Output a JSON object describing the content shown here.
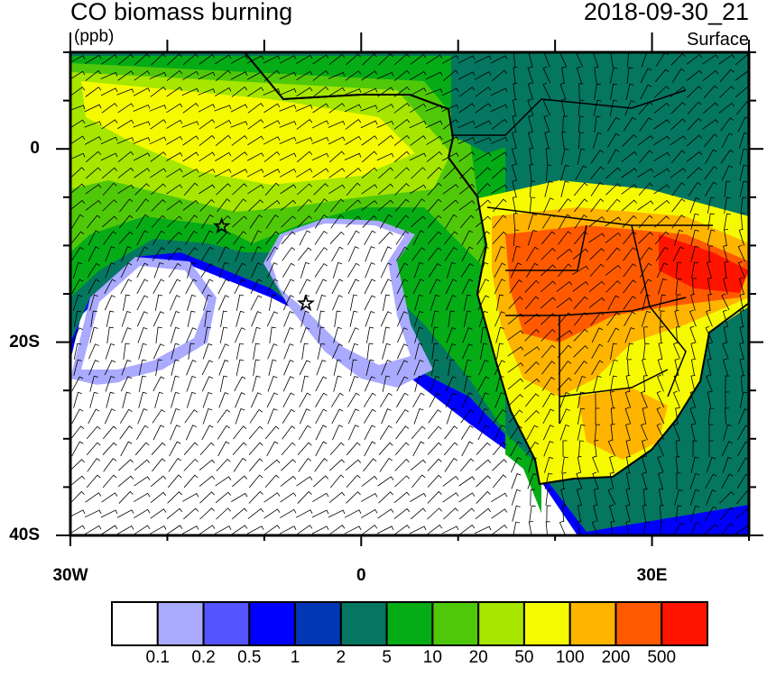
{
  "title": "CO biomass burning",
  "units": "(ppb)",
  "datetime": "2018-09-30_21",
  "level": "Surface",
  "map": {
    "lon_range": [
      -30,
      40
    ],
    "lat_range": [
      -40,
      10
    ],
    "x_ticks": [
      {
        "lon": -30,
        "label": "30W"
      },
      {
        "lon": 0,
        "label": "0"
      },
      {
        "lon": 30,
        "label": "30E"
      }
    ],
    "y_ticks": [
      {
        "lat": 0,
        "label": "0"
      },
      {
        "lat": -20,
        "label": "20S"
      },
      {
        "lat": -40,
        "label": "40S"
      }
    ],
    "markers": [
      {
        "type": "star",
        "lon": -14.4,
        "lat": -8
      },
      {
        "type": "star",
        "lon": -5.7,
        "lat": -16
      }
    ],
    "overlay": "wind barbs"
  },
  "colorbar": {
    "colors": [
      "#ffffff",
      "#aaaaff",
      "#5555ff",
      "#0000ff",
      "#0336b4",
      "#057660",
      "#05ac16",
      "#50c80a",
      "#a6e600",
      "#f5fa00",
      "#ffb400",
      "#ff5a00",
      "#ff1400"
    ],
    "labels": [
      "0.1",
      "0.2",
      "0.5",
      "1",
      "2",
      "5",
      "10",
      "20",
      "50",
      "100",
      "200",
      "500"
    ]
  }
}
